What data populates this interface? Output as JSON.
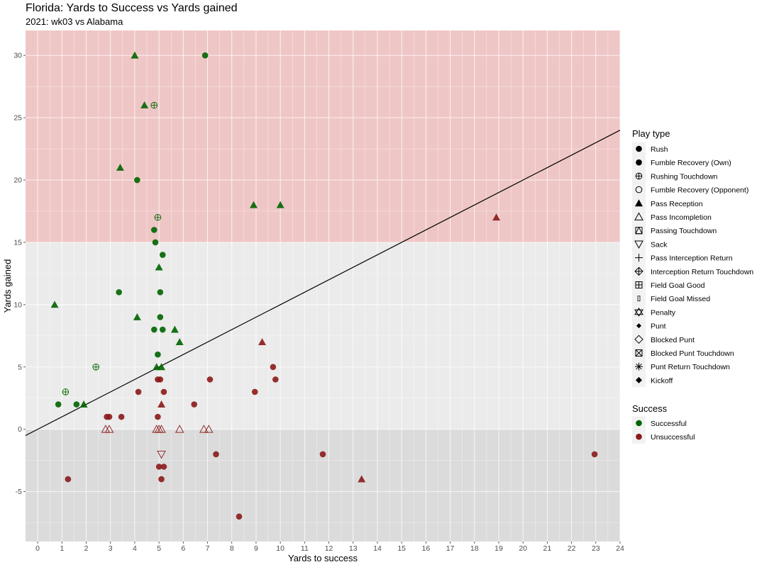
{
  "title": "Florida: Yards to Success vs Yards gained",
  "subtitle": "2021: wk03 vs Alabama",
  "chart_data": {
    "type": "scatter",
    "title": "Florida: Yards to Success vs Yards gained",
    "subtitle": "2021: wk03 vs Alabama",
    "xlabel": "Yards to success",
    "ylabel": "Yards gained",
    "xlim": [
      -0.5,
      24
    ],
    "ylim": [
      -9,
      32
    ],
    "x_ticks": [
      0,
      1,
      2,
      3,
      4,
      5,
      6,
      7,
      8,
      9,
      10,
      11,
      12,
      13,
      14,
      15,
      16,
      17,
      18,
      19,
      20,
      21,
      22,
      23,
      24
    ],
    "y_ticks": [
      -5,
      0,
      5,
      10,
      15,
      20,
      25,
      30
    ],
    "grid": true,
    "bands": [
      {
        "from": 15,
        "to": 32,
        "color": "#efc6c6"
      },
      {
        "from": 0,
        "to": 15,
        "color": "#ebebeb"
      },
      {
        "from": -9,
        "to": 0,
        "color": "#dbdbdb"
      }
    ],
    "reference_line": {
      "slope": 1,
      "intercept": 0
    },
    "colors": {
      "Successful": "#006400",
      "Unsuccessful": "#8b1a1a"
    },
    "legend_position": "right",
    "legend_play_type": {
      "title": "Play type",
      "items": [
        {
          "label": "Rush",
          "shape": "circle"
        },
        {
          "label": "Fumble Recovery (Own)",
          "shape": "circle"
        },
        {
          "label": "Rushing Touchdown",
          "shape": "circle-plus"
        },
        {
          "label": "Fumble Recovery (Opponent)",
          "shape": "circle-open"
        },
        {
          "label": "Pass Reception",
          "shape": "triangle"
        },
        {
          "label": "Pass Incompletion",
          "shape": "triangle-open"
        },
        {
          "label": "Passing Touchdown",
          "shape": "square-triangle"
        },
        {
          "label": "Sack",
          "shape": "triangle-down-open"
        },
        {
          "label": "Pass Interception Return",
          "shape": "plus"
        },
        {
          "label": "Interception Return Touchdown",
          "shape": "diamond-plus"
        },
        {
          "label": "Field Goal Good",
          "shape": "square-plus"
        },
        {
          "label": "Field Goal Missed",
          "shape": "small-rect"
        },
        {
          "label": "Penalty",
          "shape": "star-david"
        },
        {
          "label": "Punt",
          "shape": "diamond-small"
        },
        {
          "label": "Blocked Punt",
          "shape": "diamond-open"
        },
        {
          "label": "Blocked Punt Touchdown",
          "shape": "square-x"
        },
        {
          "label": "Punt Return Touchdown",
          "shape": "asterisk"
        },
        {
          "label": "Kickoff",
          "shape": "diamond"
        }
      ]
    },
    "legend_success": {
      "title": "Success",
      "items": [
        {
          "label": "Successful",
          "color": "#006400"
        },
        {
          "label": "Unsuccessful",
          "color": "#8b1a1a"
        }
      ]
    },
    "points": [
      {
        "x": 4.0,
        "y": 30,
        "shape": "triangle",
        "success": "Successful"
      },
      {
        "x": 6.9,
        "y": 30,
        "shape": "circle",
        "success": "Successful"
      },
      {
        "x": 4.4,
        "y": 26,
        "shape": "triangle",
        "success": "Successful"
      },
      {
        "x": 4.8,
        "y": 26,
        "shape": "circle-plus",
        "success": "Successful"
      },
      {
        "x": 3.4,
        "y": 21,
        "shape": "triangle",
        "success": "Successful"
      },
      {
        "x": 4.1,
        "y": 20,
        "shape": "circle",
        "success": "Successful"
      },
      {
        "x": 8.9,
        "y": 18,
        "shape": "triangle",
        "success": "Successful"
      },
      {
        "x": 10.0,
        "y": 18,
        "shape": "triangle",
        "success": "Successful"
      },
      {
        "x": 4.95,
        "y": 17,
        "shape": "circle-plus",
        "success": "Successful"
      },
      {
        "x": 18.9,
        "y": 17,
        "shape": "triangle",
        "success": "Unsuccessful"
      },
      {
        "x": 4.8,
        "y": 16,
        "shape": "circle",
        "success": "Successful"
      },
      {
        "x": 4.85,
        "y": 15,
        "shape": "circle",
        "success": "Successful"
      },
      {
        "x": 5.15,
        "y": 14,
        "shape": "circle",
        "success": "Successful"
      },
      {
        "x": 5.0,
        "y": 13,
        "shape": "triangle",
        "success": "Successful"
      },
      {
        "x": 3.35,
        "y": 11,
        "shape": "circle",
        "success": "Successful"
      },
      {
        "x": 5.05,
        "y": 11,
        "shape": "circle",
        "success": "Successful"
      },
      {
        "x": 0.7,
        "y": 10,
        "shape": "triangle",
        "success": "Successful"
      },
      {
        "x": 4.1,
        "y": 9,
        "shape": "triangle",
        "success": "Successful"
      },
      {
        "x": 5.05,
        "y": 9,
        "shape": "circle",
        "success": "Successful"
      },
      {
        "x": 4.8,
        "y": 8,
        "shape": "circle",
        "success": "Successful"
      },
      {
        "x": 5.15,
        "y": 8,
        "shape": "circle",
        "success": "Successful"
      },
      {
        "x": 5.65,
        "y": 8,
        "shape": "triangle",
        "success": "Successful"
      },
      {
        "x": 5.85,
        "y": 7,
        "shape": "triangle",
        "success": "Successful"
      },
      {
        "x": 9.25,
        "y": 7,
        "shape": "triangle",
        "success": "Unsuccessful"
      },
      {
        "x": 4.95,
        "y": 6,
        "shape": "circle",
        "success": "Successful"
      },
      {
        "x": 2.4,
        "y": 5,
        "shape": "circle-plus",
        "success": "Successful"
      },
      {
        "x": 4.9,
        "y": 5,
        "shape": "triangle",
        "success": "Successful"
      },
      {
        "x": 5.1,
        "y": 5,
        "shape": "triangle",
        "success": "Successful"
      },
      {
        "x": 9.7,
        "y": 5,
        "shape": "circle",
        "success": "Unsuccessful"
      },
      {
        "x": 4.95,
        "y": 4,
        "shape": "circle",
        "success": "Unsuccessful"
      },
      {
        "x": 5.05,
        "y": 4,
        "shape": "circle",
        "success": "Unsuccessful"
      },
      {
        "x": 7.1,
        "y": 4,
        "shape": "circle",
        "success": "Unsuccessful"
      },
      {
        "x": 9.8,
        "y": 4,
        "shape": "circle",
        "success": "Unsuccessful"
      },
      {
        "x": 1.15,
        "y": 3,
        "shape": "circle-plus",
        "success": "Successful"
      },
      {
        "x": 4.15,
        "y": 3,
        "shape": "circle",
        "success": "Unsuccessful"
      },
      {
        "x": 5.2,
        "y": 3,
        "shape": "circle",
        "success": "Unsuccessful"
      },
      {
        "x": 8.95,
        "y": 3,
        "shape": "circle",
        "success": "Unsuccessful"
      },
      {
        "x": 0.85,
        "y": 2,
        "shape": "circle",
        "success": "Successful"
      },
      {
        "x": 1.6,
        "y": 2,
        "shape": "circle",
        "success": "Successful"
      },
      {
        "x": 1.9,
        "y": 2,
        "shape": "triangle",
        "success": "Successful"
      },
      {
        "x": 5.1,
        "y": 2,
        "shape": "triangle",
        "success": "Unsuccessful"
      },
      {
        "x": 6.45,
        "y": 2,
        "shape": "circle",
        "success": "Unsuccessful"
      },
      {
        "x": 2.85,
        "y": 1,
        "shape": "circle",
        "success": "Unsuccessful"
      },
      {
        "x": 2.95,
        "y": 1,
        "shape": "circle",
        "success": "Unsuccessful"
      },
      {
        "x": 3.45,
        "y": 1,
        "shape": "circle",
        "success": "Unsuccessful"
      },
      {
        "x": 4.95,
        "y": 1,
        "shape": "circle",
        "success": "Unsuccessful"
      },
      {
        "x": 2.8,
        "y": 0,
        "shape": "triangle-open",
        "success": "Unsuccessful"
      },
      {
        "x": 2.95,
        "y": 0,
        "shape": "triangle-open",
        "success": "Unsuccessful"
      },
      {
        "x": 4.9,
        "y": 0,
        "shape": "triangle-open",
        "success": "Unsuccessful"
      },
      {
        "x": 5.0,
        "y": 0,
        "shape": "triangle-open",
        "success": "Unsuccessful"
      },
      {
        "x": 5.1,
        "y": 0,
        "shape": "triangle-open",
        "success": "Unsuccessful"
      },
      {
        "x": 5.85,
        "y": 0,
        "shape": "triangle-open",
        "success": "Unsuccessful"
      },
      {
        "x": 6.85,
        "y": 0,
        "shape": "triangle-open",
        "success": "Unsuccessful"
      },
      {
        "x": 7.05,
        "y": 0,
        "shape": "triangle-open",
        "success": "Unsuccessful"
      },
      {
        "x": 5.1,
        "y": -2,
        "shape": "triangle-down-open",
        "success": "Unsuccessful"
      },
      {
        "x": 7.35,
        "y": -2,
        "shape": "circle",
        "success": "Unsuccessful"
      },
      {
        "x": 11.75,
        "y": -2,
        "shape": "circle",
        "success": "Unsuccessful"
      },
      {
        "x": 22.95,
        "y": -2,
        "shape": "circle",
        "success": "Unsuccessful"
      },
      {
        "x": 5.0,
        "y": -3,
        "shape": "circle",
        "success": "Unsuccessful"
      },
      {
        "x": 5.2,
        "y": -3,
        "shape": "circle",
        "success": "Unsuccessful"
      },
      {
        "x": 1.25,
        "y": -4,
        "shape": "circle",
        "success": "Unsuccessful"
      },
      {
        "x": 5.1,
        "y": -4,
        "shape": "circle",
        "success": "Unsuccessful"
      },
      {
        "x": 13.35,
        "y": -4,
        "shape": "triangle",
        "success": "Unsuccessful"
      },
      {
        "x": 8.3,
        "y": -7,
        "shape": "circle",
        "success": "Unsuccessful"
      }
    ]
  }
}
